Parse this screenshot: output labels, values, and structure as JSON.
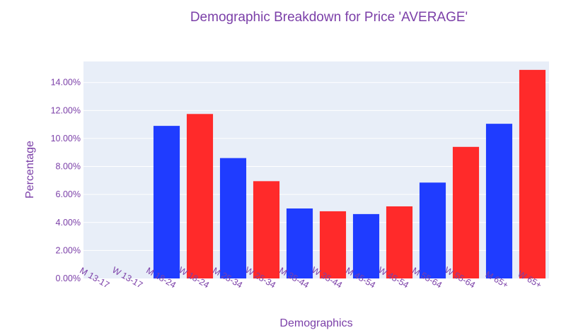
{
  "chart_data": {
    "type": "bar",
    "title": "Demographic Breakdown for Price 'AVERAGE'",
    "xlabel": "Demographics",
    "ylabel": "Percentage",
    "categories": [
      "M 13-17",
      "W 13-17",
      "M 18-24",
      "W 18-24",
      "M 25-34",
      "W 25-34",
      "M 35-44",
      "W 35-44",
      "M 45-54",
      "W 45-54",
      "M 55-64",
      "W 55-64",
      "M 65+",
      "W 65+"
    ],
    "values": [
      0.0,
      0.0,
      10.9,
      11.75,
      8.6,
      6.95,
      5.0,
      4.8,
      4.6,
      5.15,
      6.85,
      9.4,
      11.05,
      14.9
    ],
    "ylim": [
      0,
      15.5
    ],
    "yticks": [
      "0.00%",
      "2.00%",
      "4.00%",
      "6.00%",
      "8.00%",
      "10.00%",
      "12.00%",
      "14.00%"
    ],
    "grid": true,
    "legend": "none",
    "colors": {
      "men": "#1f3cff",
      "women": "#ff2a2a",
      "text": "#7b3fa8",
      "plot_bg": "#e8eef8",
      "grid": "#ffffff"
    }
  }
}
